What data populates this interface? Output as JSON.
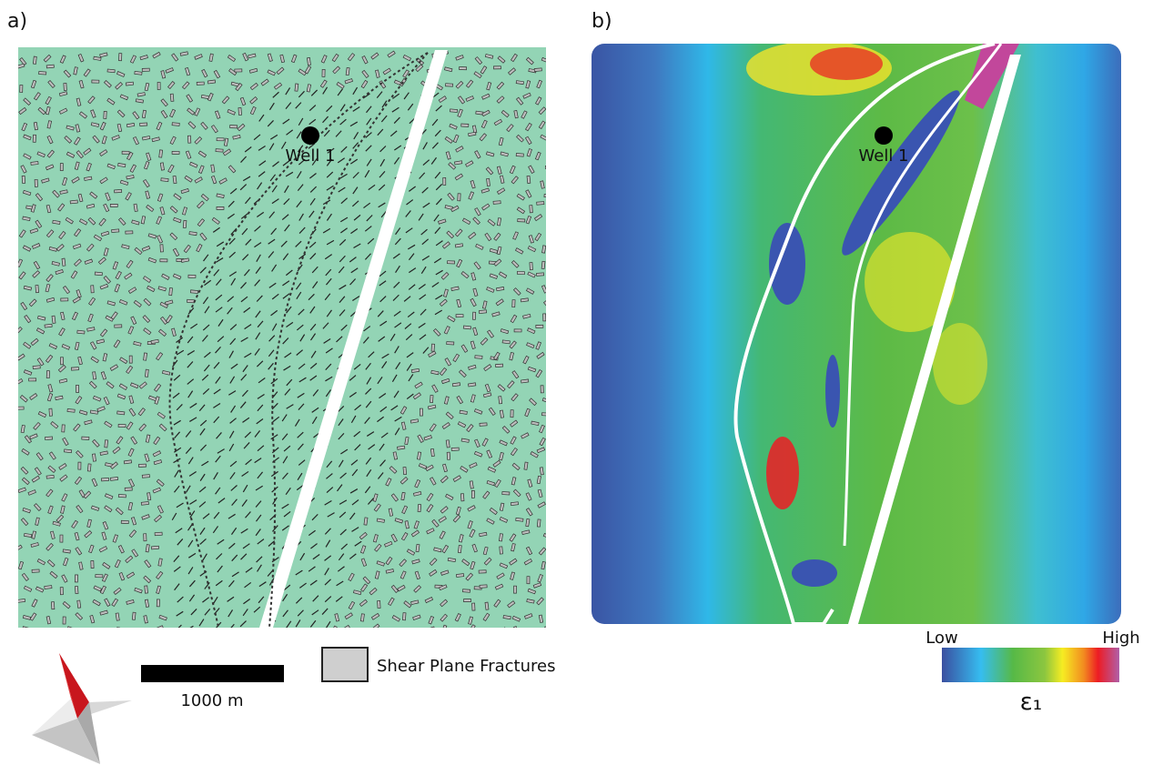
{
  "panels": [
    {
      "label": "a)",
      "well": "Well 1"
    },
    {
      "label": "b)",
      "well": "Well 1"
    }
  ],
  "scale_bar": "1000 m",
  "legend": "Shear Plane Fractures",
  "colorbar": {
    "low": "Low",
    "high": "High",
    "title": "ε₁"
  }
}
